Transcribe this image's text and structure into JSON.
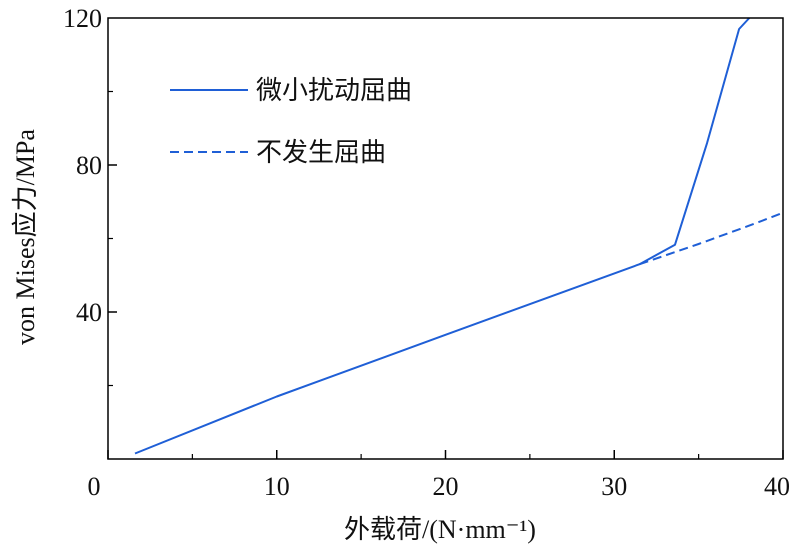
{
  "chart_data": {
    "type": "line",
    "xlabel": "外载荷/(N·mm⁻¹)",
    "ylabel": "von Mises应力/MPa",
    "xlim": [
      0,
      40
    ],
    "ylim": [
      0,
      120
    ],
    "xticks": [
      "0",
      "10",
      "20",
      "30",
      "40"
    ],
    "yticks": [
      "40",
      "80",
      "120"
    ],
    "grid": false,
    "legend_position": "top-left",
    "colors": {
      "series": "#1f5fd6",
      "axis": "#000000"
    },
    "series": [
      {
        "name": "微小扰动屈曲",
        "style": "solid",
        "x": [
          1.6,
          10,
          20,
          31.5,
          33.6,
          35.5,
          37.4,
          38.0
        ],
        "y": [
          1.5,
          17,
          33.8,
          53,
          58.3,
          86,
          117,
          120
        ]
      },
      {
        "name": "不发生屈曲",
        "style": "dashed",
        "x": [
          31.5,
          35,
          38,
          40
        ],
        "y": [
          53,
          58.5,
          63.5,
          67
        ]
      }
    ]
  }
}
